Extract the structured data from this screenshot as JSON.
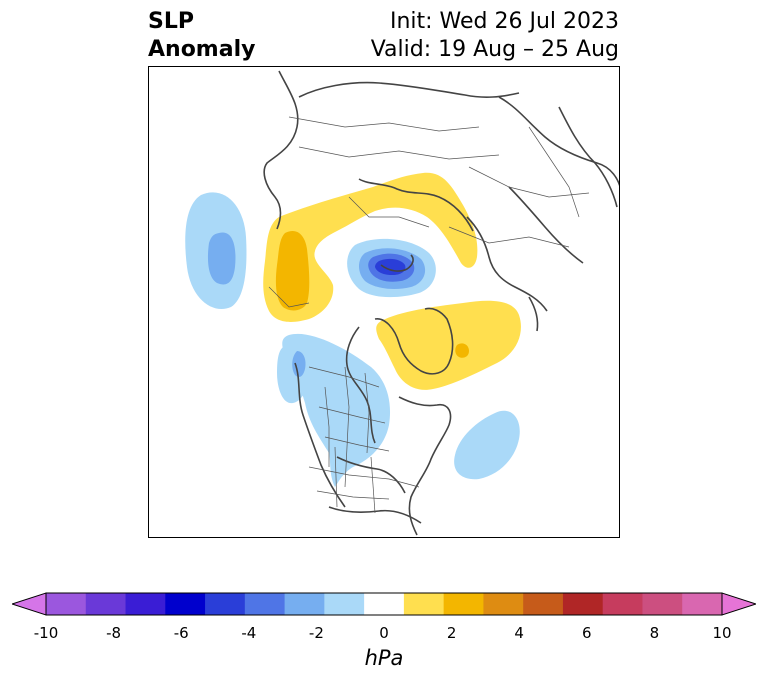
{
  "title": {
    "left_line1": "SLP",
    "left_line2": "Anomaly",
    "init": "Init: Wed 26 Jul 2023",
    "valid": "Valid: 19 Aug – 25 Aug"
  },
  "colorbar": {
    "unit_label": "hPa",
    "ticks": [
      "-10",
      "-8",
      "-6",
      "-4",
      "-2",
      "0",
      "2",
      "4",
      "6",
      "8",
      "10"
    ],
    "colors": [
      "#d575e8",
      "#9b57de",
      "#6a39d8",
      "#3a1dd5",
      "#0000cd",
      "#2a3ed8",
      "#4f75e6",
      "#76aef0",
      "#aad9f8",
      "#ffffff",
      "#ffdf4f",
      "#f3b600",
      "#de8c12",
      "#c65b1a",
      "#b02626",
      "#c63c5e",
      "#cc4f80",
      "#d967b0",
      "#e674d6"
    ]
  },
  "map": {
    "projection": "north-polar-stereographic",
    "field": "sea level pressure anomaly",
    "negative_color_light": "#aad9f8",
    "negative_color_mid": "#76aef0",
    "negative_color_strong": "#4f75e6",
    "negative_color_core": "#2a3ed8",
    "positive_color_light": "#ffdf4f",
    "positive_color_mid": "#f3b600",
    "coastline_color": "#444444"
  }
}
